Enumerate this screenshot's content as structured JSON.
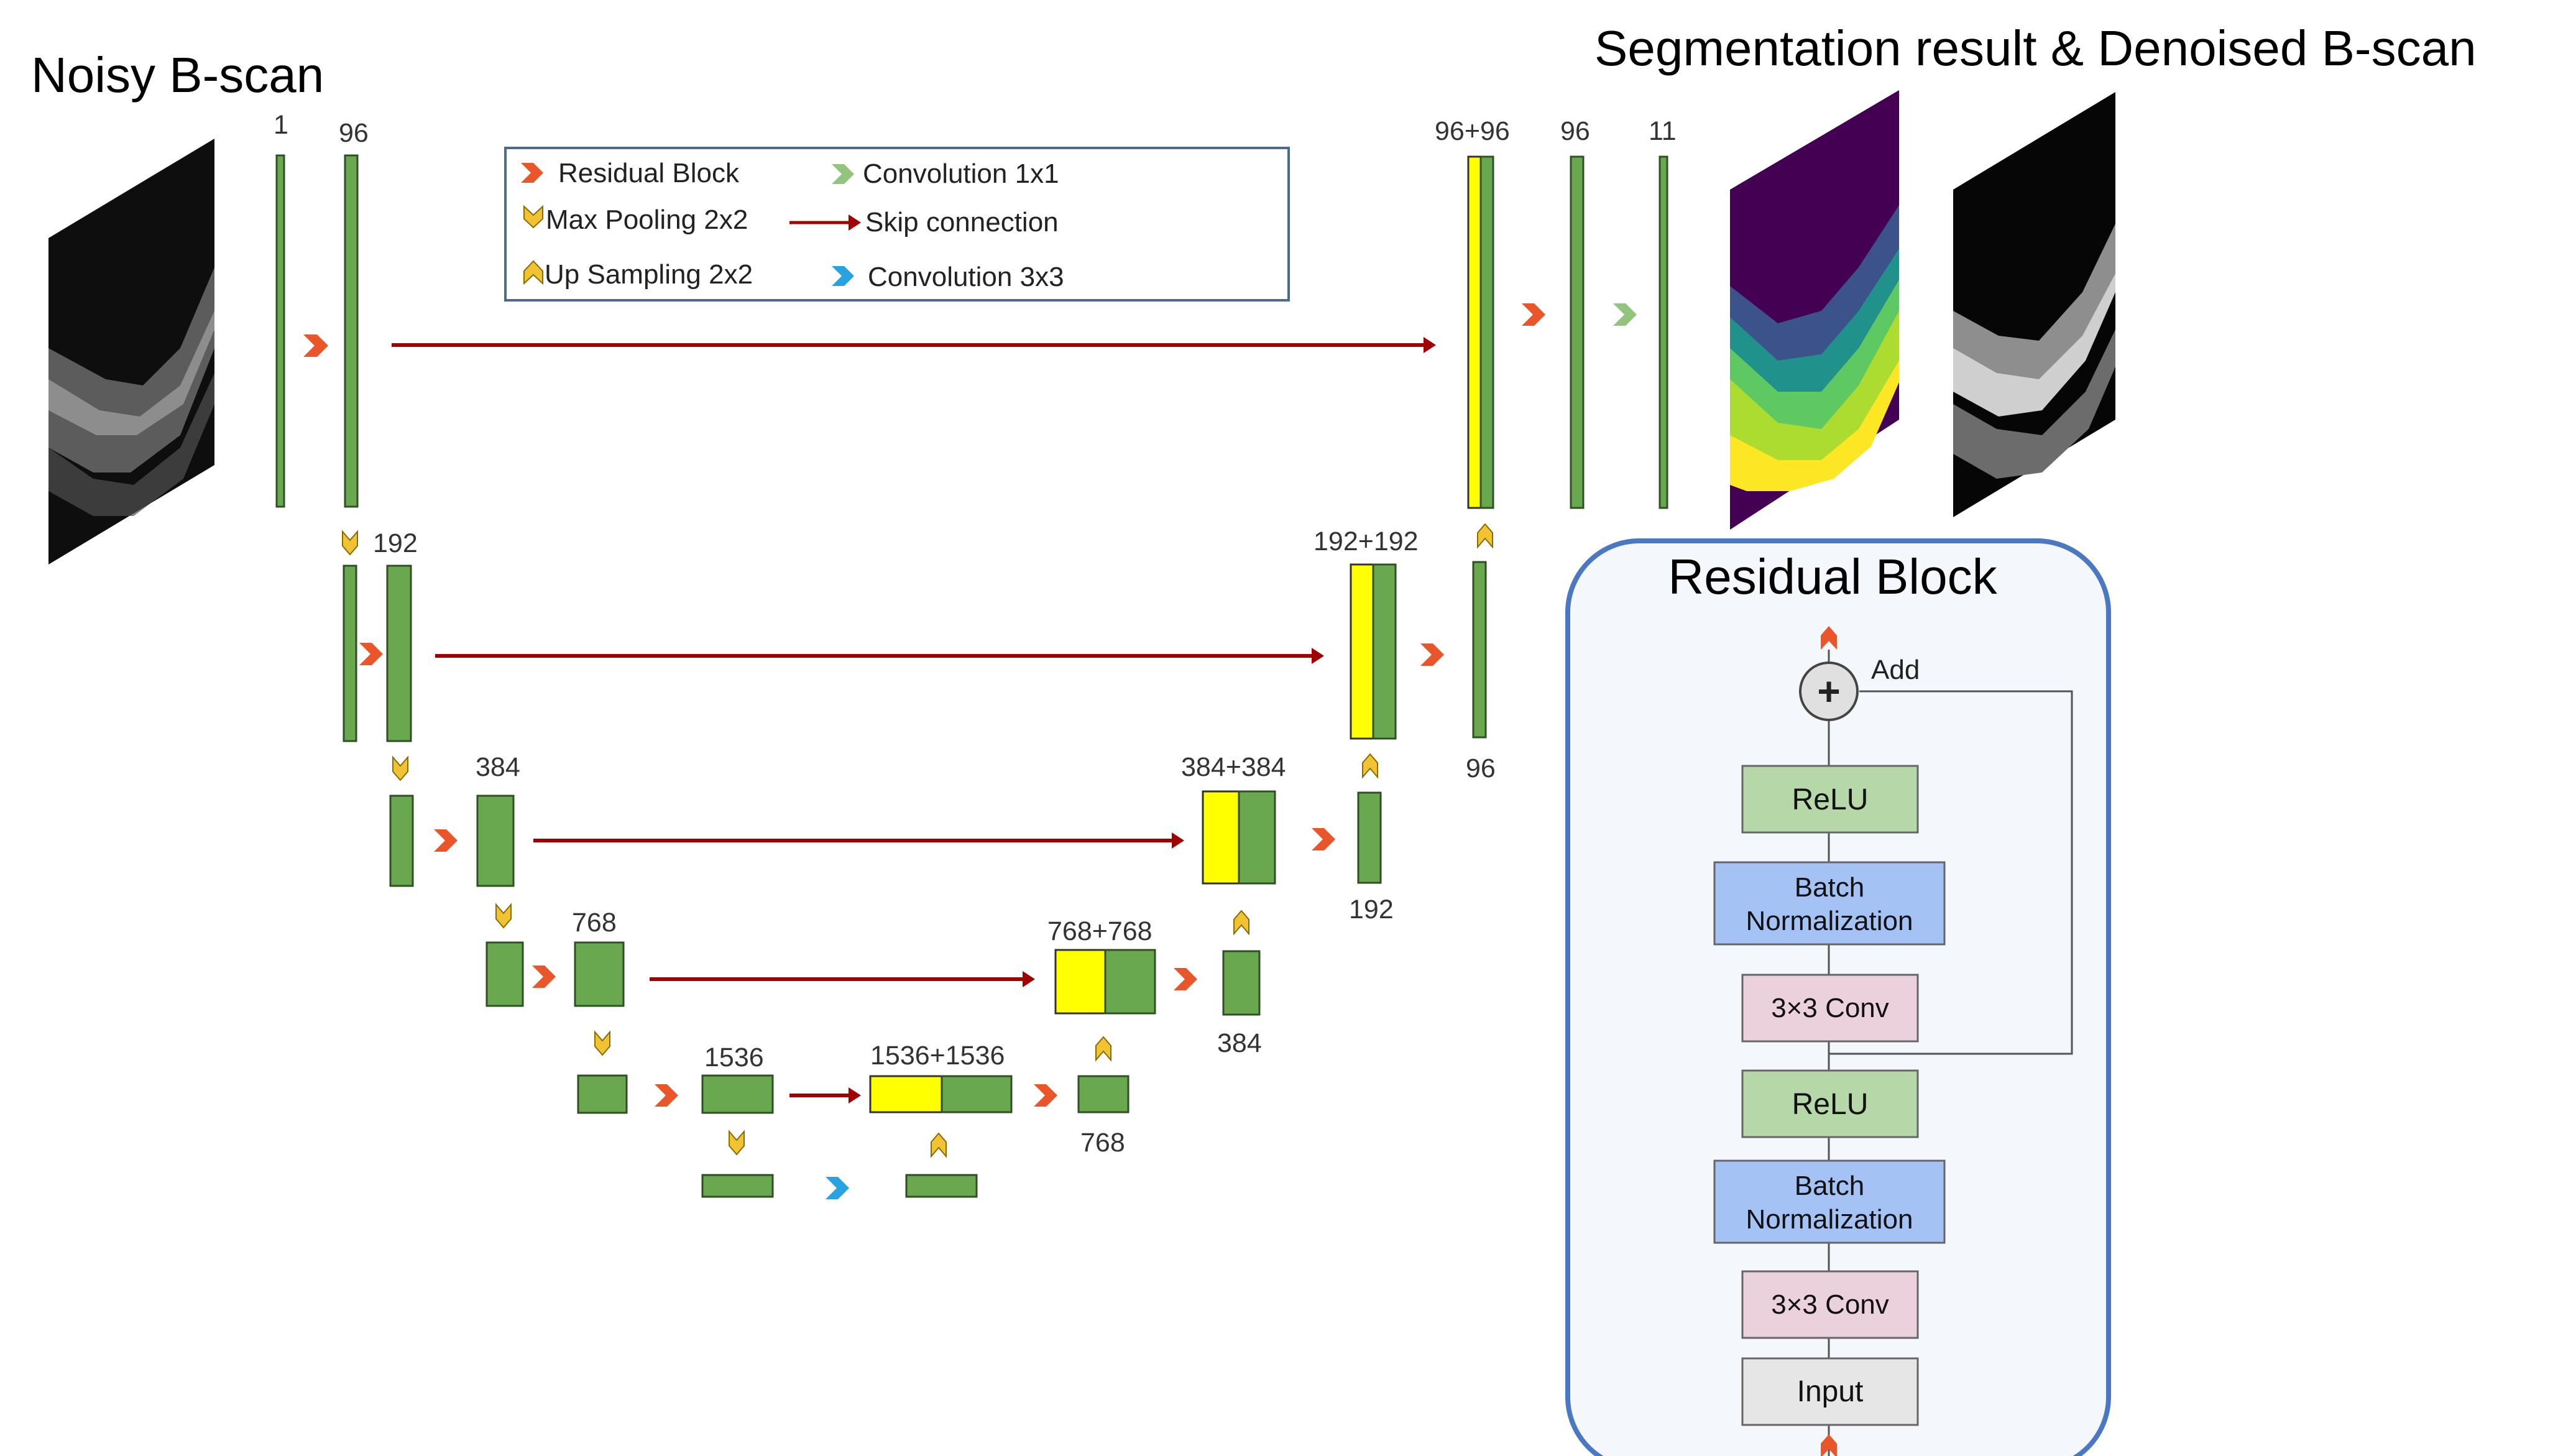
{
  "titles": {
    "input": "Noisy B-scan",
    "output": "Segmentation result & Denoised B-scan",
    "residual_block": "Residual Block"
  },
  "legend": {
    "residual_block": "Residual Block",
    "max_pooling": "Max Pooling 2x2",
    "up_sampling": "Up Sampling 2x2",
    "conv1x1": "Convolution 1x1",
    "skip": "Skip connection",
    "conv3x3": "Convolution 3x3"
  },
  "channels": {
    "enc1_in": "1",
    "enc1_out": "96",
    "enc2": "192",
    "enc3": "384",
    "enc4": "768",
    "enc5": "1536",
    "dec5_concat": "1536+1536",
    "dec5_out": "768",
    "dec4_concat": "768+768",
    "dec4_out": "384",
    "dec3_concat": "384+384",
    "dec3_out": "192",
    "dec2_concat": "192+192",
    "dec2_out": "96",
    "dec1_concat": "96+96",
    "dec1_out": "96",
    "final_out": "11"
  },
  "residual_block": {
    "add_label": "Add",
    "add_symbol": "+",
    "layers_top_to_bottom": [
      "ReLU",
      "Batch Normalization",
      "3×3 Conv",
      "ReLU",
      "Batch Normalization",
      "3×3 Conv",
      "Input"
    ]
  },
  "colors": {
    "feature_map": "#6aa84f",
    "skip_feature": "#ffff00",
    "skip_arrow": "#a00000",
    "residual_icon": "#e8562a",
    "pool_icon": "#f1c232",
    "conv1x1_icon": "#93c47d",
    "conv3x3_icon": "#29a3e0",
    "relu_box": "#b6d7a8",
    "bn_box": "#a4c2f4",
    "conv_box": "#ead1dc",
    "input_box": "#e6e6e6",
    "block_border": "#4a78c2",
    "block_fill": "#f4f7fb",
    "segmentation_bg": "#440154"
  },
  "icons": [
    "residual-block-icon",
    "max-pool-icon",
    "up-sample-icon",
    "conv1x1-icon",
    "conv3x3-icon",
    "add-icon"
  ]
}
